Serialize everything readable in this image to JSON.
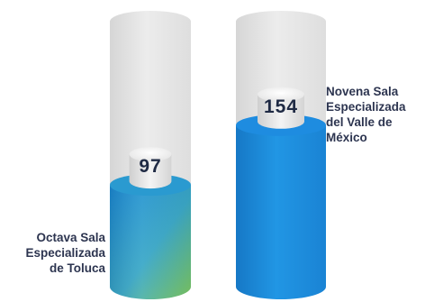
{
  "chart_data": {
    "type": "bar",
    "categories": [
      "Octava Sala\nEspecializada\nde Toluca",
      "Novena Sala\nEspecializada\ndel Valle de\nMéxico"
    ],
    "values": [
      97,
      154
    ],
    "ylim": [
      0,
      220
    ],
    "grid": false,
    "legend": "none",
    "colors": {
      "bar_0_top": "#1b8ad6",
      "bar_0_bottom": "#7dc860",
      "bar_1": "#1d86d8",
      "track": "#e2e2e2",
      "label_text": "#2d3550",
      "value_text": "#1f2a44"
    }
  }
}
